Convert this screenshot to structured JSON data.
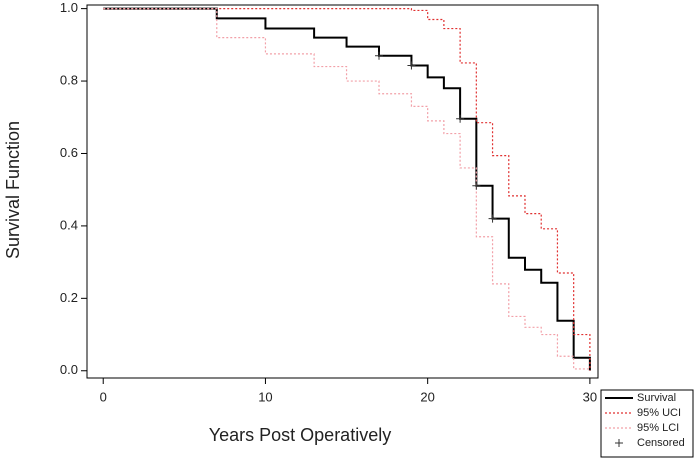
{
  "chart_data": {
    "type": "step",
    "x_label": "Years Post Operatively",
    "y_label": "Survival Function",
    "xlim": [
      -1,
      30.5
    ],
    "ylim": [
      -0.02,
      1.01
    ],
    "xticks": [
      0,
      10,
      20,
      30
    ],
    "yticks": [
      {
        "value": 0,
        "label": "0.0"
      },
      0.2,
      0.4,
      0.6,
      0.8,
      {
        "value": 1,
        "label": "1.0"
      }
    ],
    "series": [
      {
        "name": "Survival",
        "color": "#000000",
        "style": "solid",
        "x": [
          0,
          7,
          10,
          13,
          15,
          17,
          19,
          20,
          21,
          22,
          23,
          24,
          25,
          26,
          27,
          28,
          29,
          30
        ],
        "values": [
          1,
          0.973,
          0.945,
          0.92,
          0.895,
          0.87,
          0.843,
          0.81,
          0.78,
          0.696,
          0.511,
          0.42,
          0.312,
          0.279,
          0.243,
          0.138,
          0.036,
          0
        ]
      },
      {
        "name": "95% UCI",
        "color": "#e03030",
        "style": "dotted",
        "x": [
          0,
          19,
          20,
          21,
          22,
          23,
          24,
          25,
          26,
          27,
          28,
          29,
          30
        ],
        "values": [
          1,
          0.995,
          0.97,
          0.945,
          0.85,
          0.685,
          0.594,
          0.483,
          0.434,
          0.392,
          0.27,
          0.1,
          0
        ]
      },
      {
        "name": "95% LCI",
        "color": "#f2a0a8",
        "style": "dotted",
        "x": [
          0,
          7,
          10,
          13,
          15,
          17,
          19,
          20,
          21,
          22,
          23,
          24,
          25,
          26,
          27,
          28,
          29,
          30
        ],
        "values": [
          1,
          0.92,
          0.875,
          0.84,
          0.8,
          0.765,
          0.73,
          0.69,
          0.655,
          0.56,
          0.37,
          0.24,
          0.15,
          0.12,
          0.1,
          0.04,
          0.005,
          0
        ]
      }
    ],
    "censored": {
      "name": "Censored",
      "color": "#333333",
      "x": [
        17,
        19,
        22,
        23,
        24
      ],
      "values": [
        0.87,
        0.843,
        0.696,
        0.511,
        0.42
      ]
    }
  }
}
